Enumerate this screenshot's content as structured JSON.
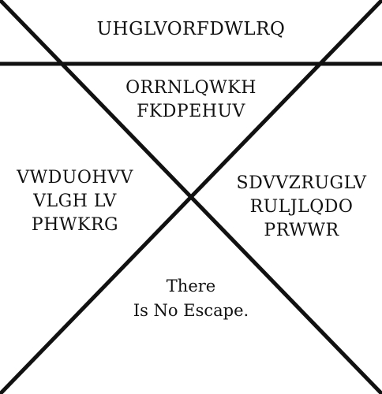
{
  "stroke_color": "#111111",
  "texts": {
    "top": "UHGLVORFDWLRQ",
    "upper": [
      "ORRNLQWKH",
      "FKDPEHUV"
    ],
    "left": [
      "VWDUOHVV",
      "VLGH LV",
      "PHWKRG"
    ],
    "right": [
      "SDVVZRUGLV",
      "RULJLQDO",
      "PRWWR"
    ],
    "bottom": [
      "There",
      "Is No Escape."
    ]
  }
}
